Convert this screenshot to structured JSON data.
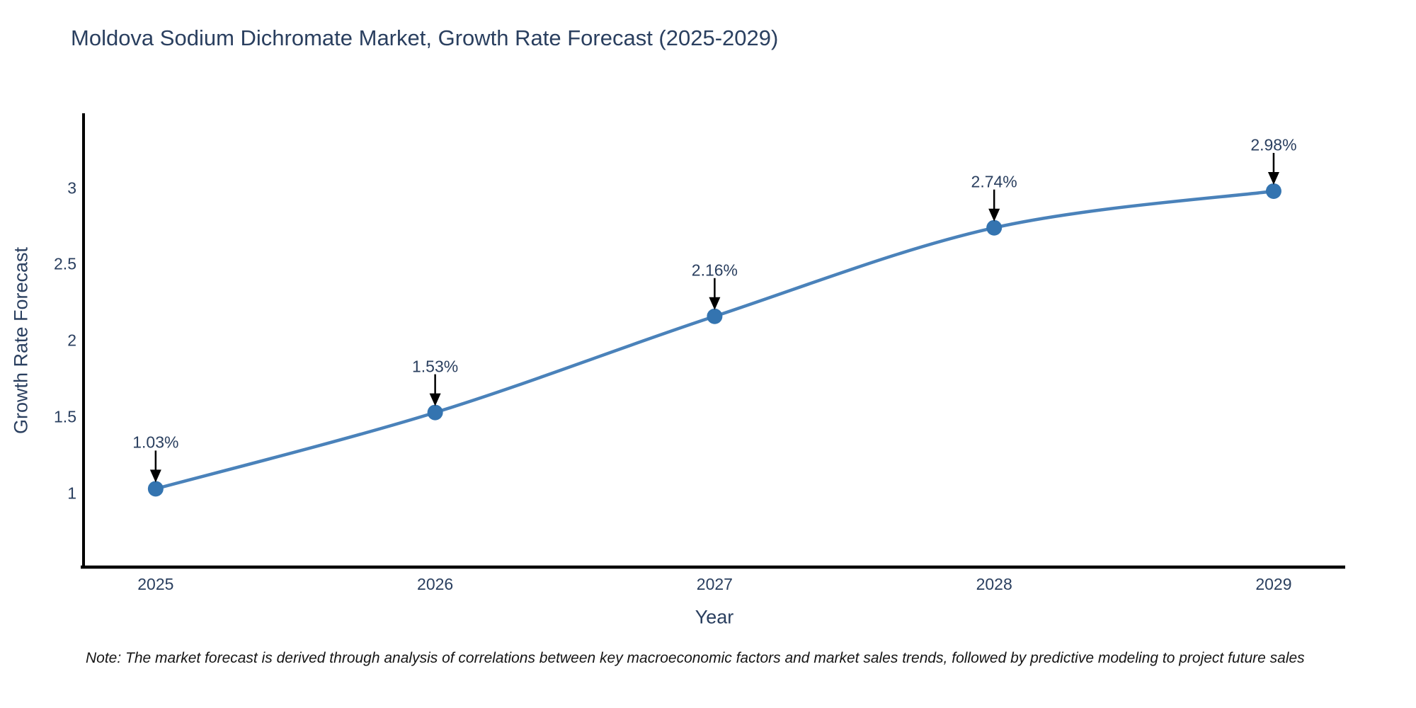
{
  "page": {
    "background_color": "#ffffff"
  },
  "header": {
    "title": "Moldova Sodium Dichromate Market, Growth Rate Forecast (2025-2029)"
  },
  "footer": {
    "note": "Note: The market forecast is derived through analysis of correlations between key macroeconomic factors and market sales trends, followed by predictive modeling to project future sales"
  },
  "colors": {
    "title_text": "#2a3f5f",
    "axis_text": "#2a3f5f",
    "spine": "#000000",
    "line": "#4a82ba",
    "marker": "#3474b0",
    "annotation_arrow": "#000000",
    "annotation_text": "#2a3f5f"
  },
  "chart_data": {
    "type": "line",
    "title": "Moldova Sodium Dichromate Market, Growth Rate Forecast (2025-2029)",
    "xlabel": "Year",
    "ylabel": "Growth Rate Forecast",
    "x": [
      2025,
      2026,
      2027,
      2028,
      2029
    ],
    "values": [
      1.03,
      1.53,
      2.16,
      2.74,
      2.98
    ],
    "point_labels": [
      "1.03%",
      "1.53%",
      "2.16%",
      "2.74%",
      "2.98%"
    ],
    "xtick_labels": [
      "2025",
      "2026",
      "2027",
      "2028",
      "2029"
    ],
    "yticks": [
      1,
      1.5,
      2,
      2.5,
      3
    ],
    "ytick_labels": [
      "1",
      "1.5",
      "2",
      "2.5",
      "3"
    ],
    "xlim": [
      2024.742,
      2029.256
    ],
    "ylim": [
      0.517,
      3.49
    ],
    "grid": false,
    "legend": false,
    "line_shape": "spline",
    "annotations": "value labels with down arrows above each point"
  }
}
